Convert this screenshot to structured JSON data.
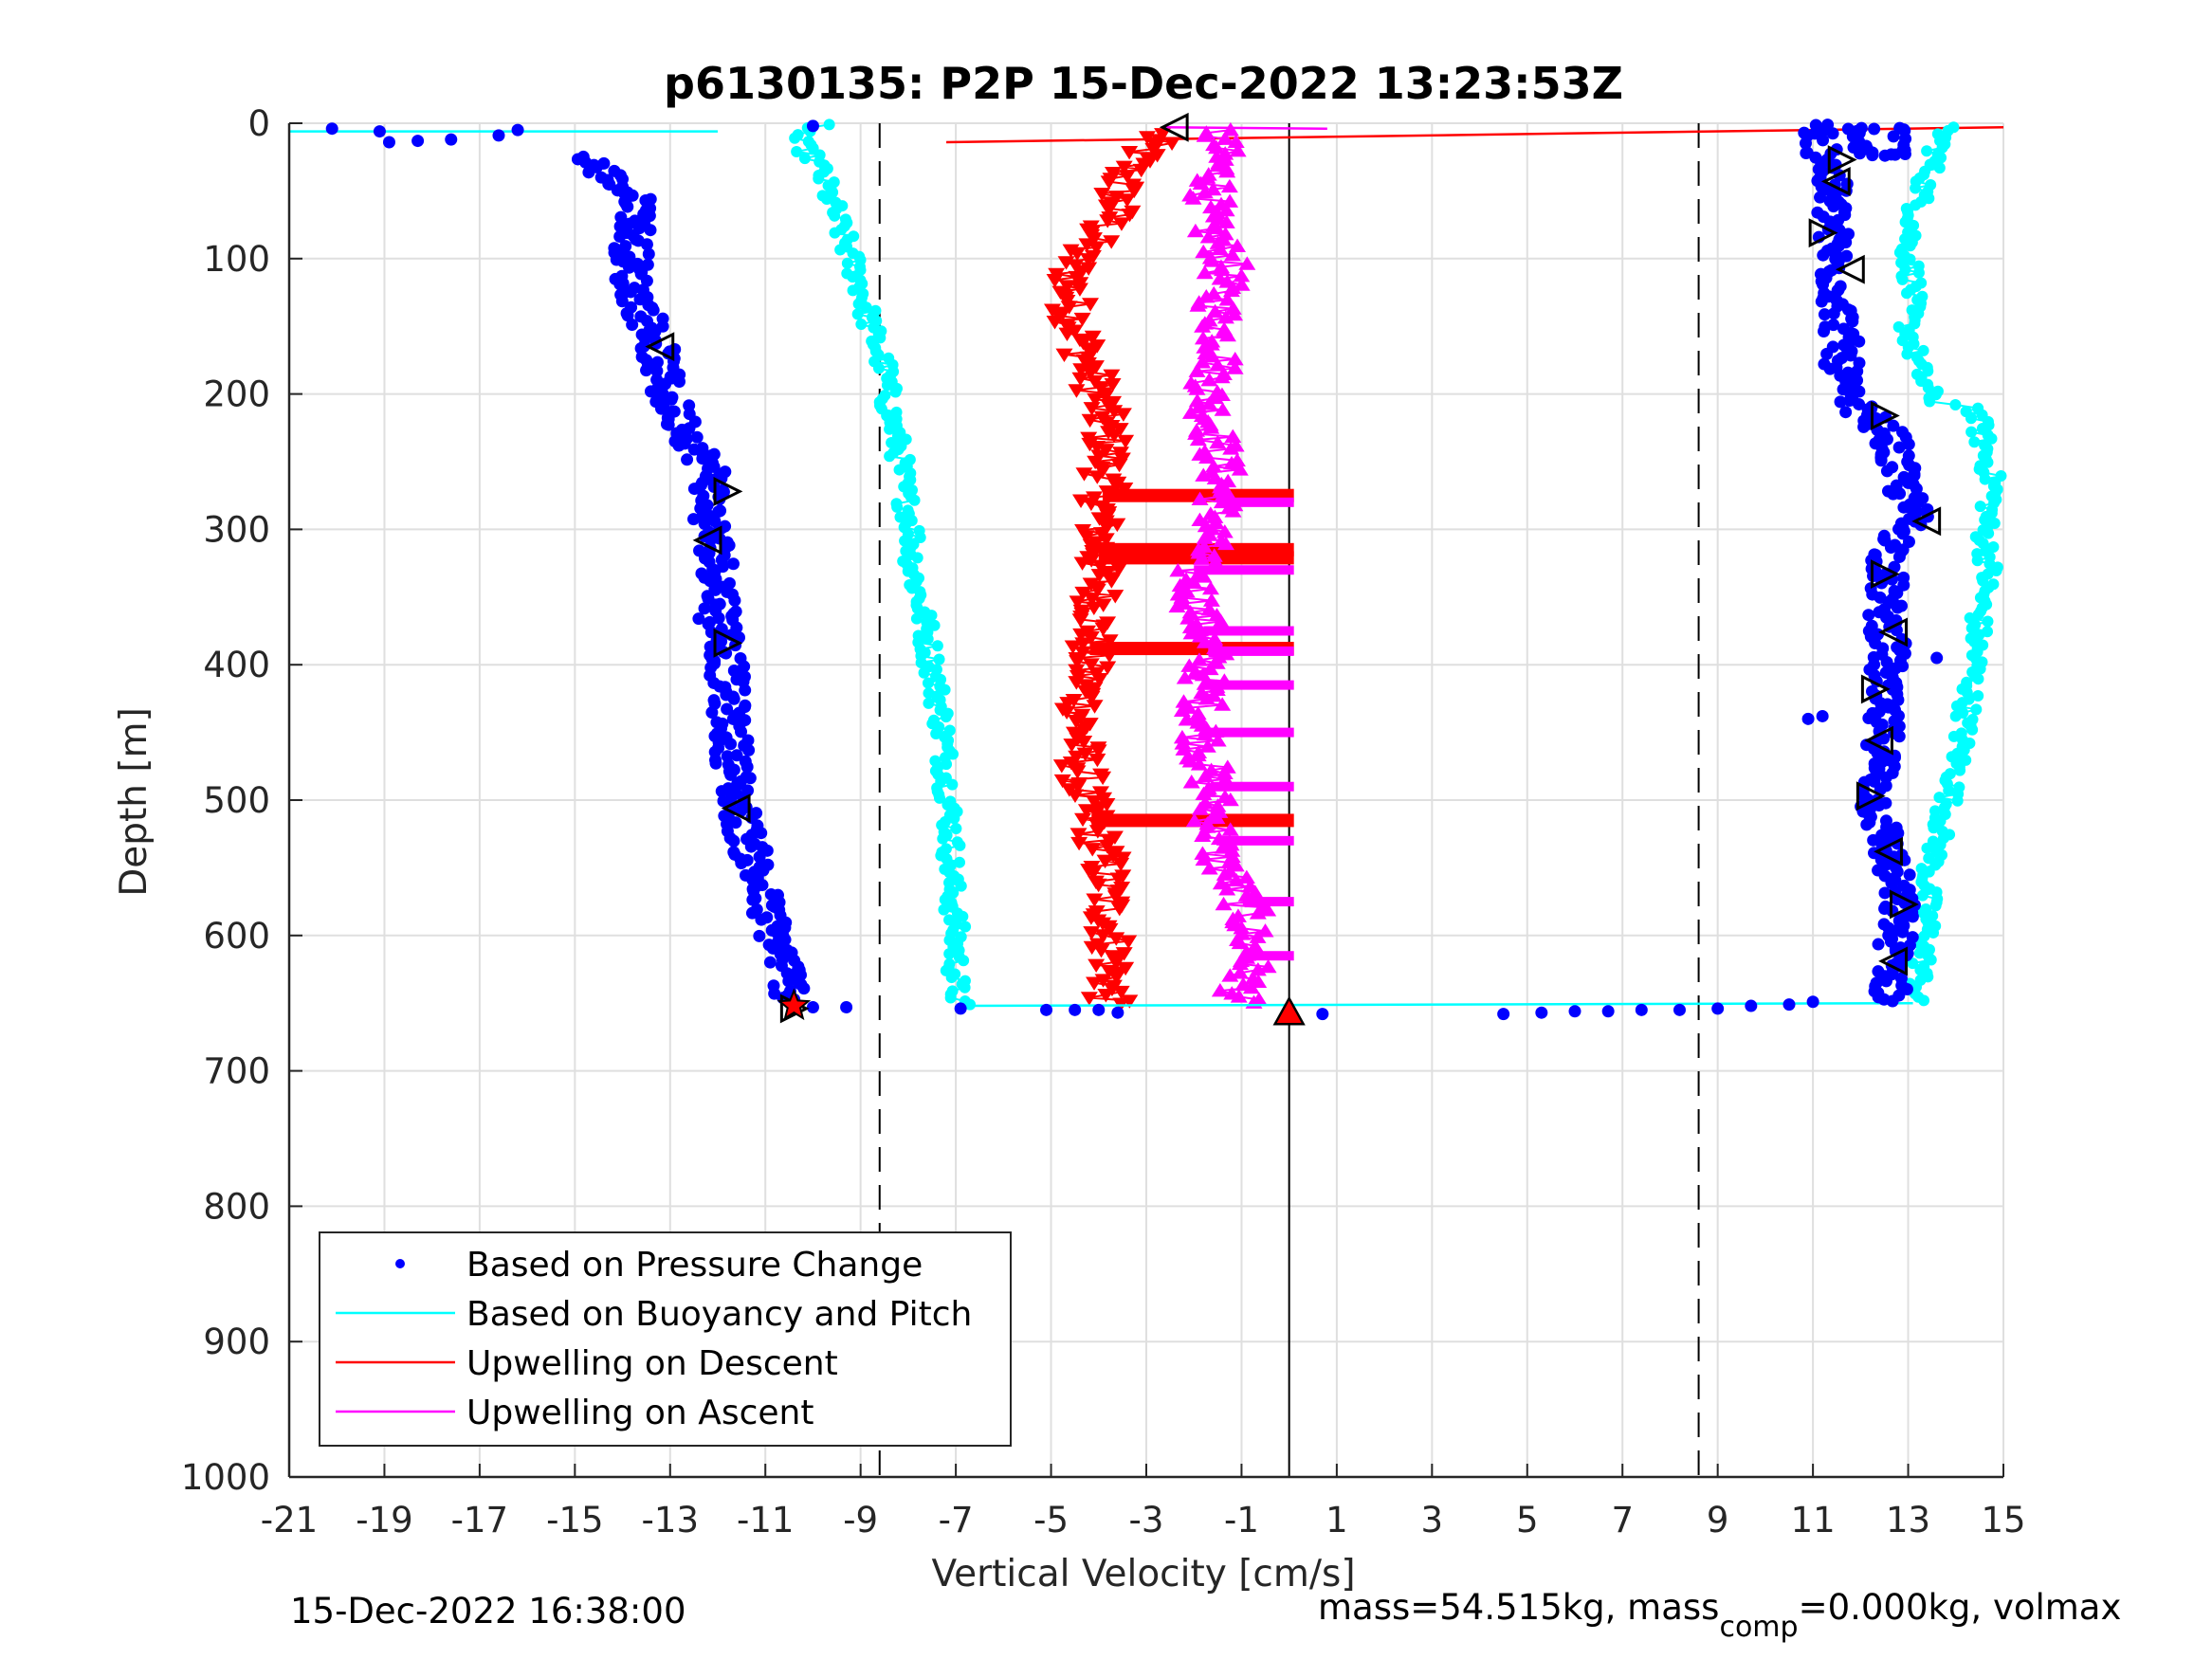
{
  "chart_data": {
    "type": "scatter",
    "title": "p6130135: P2P 15-Dec-2022 13:23:53Z",
    "xlabel": "Vertical Velocity [cm/s]",
    "ylabel": "Depth [m]",
    "xlim": [
      -21,
      15
    ],
    "ylim": [
      0,
      1000
    ],
    "y_reversed": true,
    "grid": true,
    "x_ticks": [
      "-21",
      "-19",
      "-17",
      "-15",
      "-13",
      "-11",
      "-9",
      "-7",
      "-5",
      "-3",
      "-1",
      "1",
      "3",
      "5",
      "7",
      "9",
      "11",
      "13",
      "15"
    ],
    "y_ticks": [
      "0",
      "100",
      "200",
      "300",
      "400",
      "500",
      "600",
      "700",
      "800",
      "900",
      "1000"
    ],
    "legend_position": "bottom-left",
    "vlines": [
      {
        "x": -8.6,
        "style": "dashed"
      },
      {
        "x": 0,
        "style": "solid"
      },
      {
        "x": 8.6,
        "style": "dashed"
      }
    ],
    "series": [
      {
        "name": "Based on Pressure Change",
        "color": "#0000ff",
        "marker": "dot",
        "profiles": [
          {
            "label": "descent",
            "depth": [
              5,
              30,
              60,
              90,
              120,
              160,
              200,
              230,
              260,
              290,
              320,
              360,
              390,
              420,
              460,
              500,
              540,
              580,
              620,
              650
            ],
            "x": [
              -16,
              -14.6,
              -13.6,
              -13.8,
              -13.8,
              -13.3,
              -13.1,
              -12.6,
              -12.1,
              -12.2,
              -12.0,
              -11.9,
              -11.8,
              -11.8,
              -11.7,
              -11.6,
              -11.3,
              -11.0,
              -10.6,
              -10.4
            ]
          },
          {
            "label": "ascent",
            "depth": [
              5,
              30,
              60,
              90,
              120,
              160,
              200,
              230,
              260,
              290,
              320,
              360,
              390,
              420,
              460,
              500,
              540,
              580,
              620,
              650
            ],
            "x": [
              11.5,
              11.3,
              11.4,
              11.4,
              11.5,
              11.6,
              11.6,
              12.6,
              12.8,
              13.1,
              12.6,
              12.5,
              12.6,
              12.4,
              12.5,
              12.3,
              12.6,
              12.8,
              12.7,
              12.6
            ]
          }
        ],
        "stray_points": [
          {
            "x": -20.1,
            "y": 4
          },
          {
            "x": -19.1,
            "y": 6
          },
          {
            "x": -18.9,
            "y": 14
          },
          {
            "x": -18.3,
            "y": 13
          },
          {
            "x": -17.6,
            "y": 12
          },
          {
            "x": -16.6,
            "y": 9
          },
          {
            "x": -16.2,
            "y": 5
          },
          {
            "x": -10.0,
            "y": 2
          },
          {
            "x": -9.3,
            "y": 653
          },
          {
            "x": -10.0,
            "y": 653
          },
          {
            "x": -6.9,
            "y": 654
          },
          {
            "x": -5.1,
            "y": 655
          },
          {
            "x": -4.5,
            "y": 655
          },
          {
            "x": -4.0,
            "y": 655
          },
          {
            "x": -3.6,
            "y": 657
          },
          {
            "x": 0.7,
            "y": 658
          },
          {
            "x": 4.5,
            "y": 658
          },
          {
            "x": 5.3,
            "y": 657
          },
          {
            "x": 6.0,
            "y": 656
          },
          {
            "x": 6.7,
            "y": 656
          },
          {
            "x": 7.4,
            "y": 655
          },
          {
            "x": 8.2,
            "y": 655
          },
          {
            "x": 9.0,
            "y": 654
          },
          {
            "x": 9.7,
            "y": 652
          },
          {
            "x": 10.5,
            "y": 651
          },
          {
            "x": 11.0,
            "y": 649
          },
          {
            "x": 11.2,
            "y": 438
          },
          {
            "x": 10.9,
            "y": 440
          },
          {
            "x": 13.6,
            "y": 395
          },
          {
            "x": -12.4,
            "y": 366
          },
          {
            "x": -12.0,
            "y": 262
          },
          {
            "x": -13.5,
            "y": 175
          }
        ],
        "triangles": [
          {
            "x": -13.2,
            "y": 165
          },
          {
            "x": -11.8,
            "y": 272
          },
          {
            "x": -12.2,
            "y": 308
          },
          {
            "x": -11.8,
            "y": 384
          },
          {
            "x": -11.6,
            "y": 506
          },
          {
            "x": -10.4,
            "y": 654
          },
          {
            "x": -2.4,
            "y": 3
          },
          {
            "x": 11.6,
            "y": 27
          },
          {
            "x": 11.5,
            "y": 43
          },
          {
            "x": 11.2,
            "y": 81
          },
          {
            "x": 11.8,
            "y": 108
          },
          {
            "x": 12.5,
            "y": 216
          },
          {
            "x": 13.4,
            "y": 294
          },
          {
            "x": 12.5,
            "y": 333
          },
          {
            "x": 12.7,
            "y": 376
          },
          {
            "x": 12.3,
            "y": 418
          },
          {
            "x": 12.4,
            "y": 456
          },
          {
            "x": 12.2,
            "y": 497
          },
          {
            "x": 12.6,
            "y": 538
          },
          {
            "x": 12.9,
            "y": 577
          },
          {
            "x": 12.7,
            "y": 619
          }
        ],
        "endpoint_markers": [
          {
            "x": -10.4,
            "y": 652,
            "color": "#ff0000",
            "shape": "star"
          },
          {
            "x": 0,
            "y": 657,
            "color": "#ff0000",
            "shape": "triangle-up"
          }
        ]
      },
      {
        "name": "Based on Buoyancy and Pitch",
        "color": "#00ffff",
        "marker": "line",
        "profiles": [
          {
            "label": "descent",
            "depth": [
              1,
              10,
              30,
              60,
              90,
              120,
              150,
              180,
              210,
              240,
              270,
              300,
              330,
              360,
              400,
              440,
              480,
              520,
              560,
              600,
              640,
              652
            ],
            "x": [
              -9.8,
              -10.4,
              -9.9,
              -9.6,
              -9.3,
              -9.0,
              -8.8,
              -8.5,
              -8.4,
              -8.2,
              -8.1,
              -7.9,
              -7.9,
              -7.7,
              -7.5,
              -7.3,
              -7.2,
              -7.1,
              -7.1,
              -7.0,
              -7.0,
              -6.9
            ]
          },
          {
            "label": "ascent",
            "depth": [
              3,
              30,
              60,
              90,
              120,
              150,
              180,
              205,
              210,
              240,
              270,
              300,
              330,
              360,
              400,
              440,
              480,
              520,
              560,
              600,
              640,
              650
            ],
            "x": [
              13.8,
              13.5,
              13.2,
              13.0,
              13.1,
              13.0,
              13.2,
              13.5,
              14.4,
              14.6,
              14.8,
              14.6,
              14.7,
              14.5,
              14.4,
              14.2,
              14.0,
              13.7,
              13.4,
              13.4,
              13.2,
              13.1
            ]
          }
        ],
        "connectors": [
          {
            "x": [
              -21,
              -12
            ],
            "y": [
              6,
              6
            ]
          },
          {
            "x": [
              -6.9,
              13.1
            ],
            "y": [
              652,
              650
            ]
          }
        ]
      },
      {
        "name": "Upwelling on Descent",
        "color": "#ff0000",
        "marker": "triangle-down",
        "depth": [
          10,
          40,
          70,
          100,
          130,
          170,
          200,
          240,
          270,
          300,
          330,
          360,
          390,
          420,
          460,
          500,
          540,
          580,
          620,
          650
        ],
        "x": [
          -2.8,
          -3.5,
          -3.7,
          -4.5,
          -4.6,
          -4.3,
          -4.0,
          -3.8,
          -3.9,
          -4.0,
          -4.0,
          -4.0,
          -4.2,
          -4.3,
          -4.4,
          -4.3,
          -3.9,
          -3.8,
          -3.7,
          -3.8
        ],
        "streaks_depth": [
          275,
          315,
          321,
          388,
          515
        ],
        "connectors": [
          {
            "x": [
              -7.2,
              15
            ],
            "y": [
              14,
              3
            ]
          }
        ]
      },
      {
        "name": "Upwelling on Ascent",
        "color": "#ff00ff",
        "marker": "triangle-up",
        "depth": [
          5,
          40,
          70,
          100,
          130,
          170,
          200,
          240,
          270,
          300,
          330,
          360,
          390,
          420,
          460,
          500,
          540,
          580,
          620,
          650
        ],
        "x": [
          -1.5,
          -1.5,
          -1.8,
          -1.3,
          -1.5,
          -1.4,
          -1.7,
          -1.5,
          -1.4,
          -1.6,
          -2.0,
          -1.9,
          -1.7,
          -1.8,
          -1.8,
          -1.6,
          -1.5,
          -0.9,
          -0.8,
          -1.1
        ],
        "streaks_depth": [
          280,
          330,
          375,
          390,
          415,
          450,
          490,
          530,
          575,
          615
        ],
        "connectors": [
          {
            "x": [
              -2.6,
              0.8
            ],
            "y": [
              3,
              4
            ]
          }
        ]
      }
    ]
  },
  "footer": {
    "timestamp": "15-Dec-2022 16:38:00",
    "mass_text": "mass=54.515kg, mass",
    "mass_sub": "comp",
    "mass_rest": "=0.000kg, volmax"
  }
}
